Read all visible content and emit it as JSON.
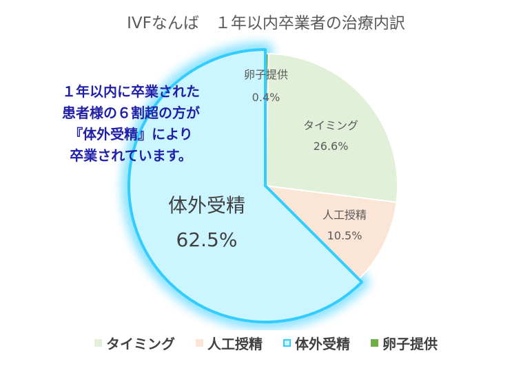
{
  "chart_data": {
    "type": "pie",
    "title": "IVFなんば　１年以内卒業者の治療内訳",
    "slices": [
      {
        "label": "タイミング",
        "value": 26.6,
        "value_label": "26.6%",
        "color": "#e2efd9"
      },
      {
        "label": "人工授精",
        "value": 10.5,
        "value_label": "10.5%",
        "color": "#fbe5d6"
      },
      {
        "label": "体外受精",
        "value": 62.5,
        "value_label": "62.5%",
        "color": "#ccf6ff",
        "outline": "#33ccff",
        "highlighted": true
      },
      {
        "label": "卵子提供",
        "value": 0.4,
        "value_label": "0.4%",
        "color": "#70ad47"
      }
    ],
    "legend": {
      "position": "bottom",
      "entries": [
        "タイミング",
        "人工授精",
        "体外受精",
        "卵子提供"
      ]
    },
    "callout_lines": [
      "１年以内に卒業された",
      "患者様の６割超の方が",
      "『体外受精』により",
      "卒業されています。"
    ]
  }
}
